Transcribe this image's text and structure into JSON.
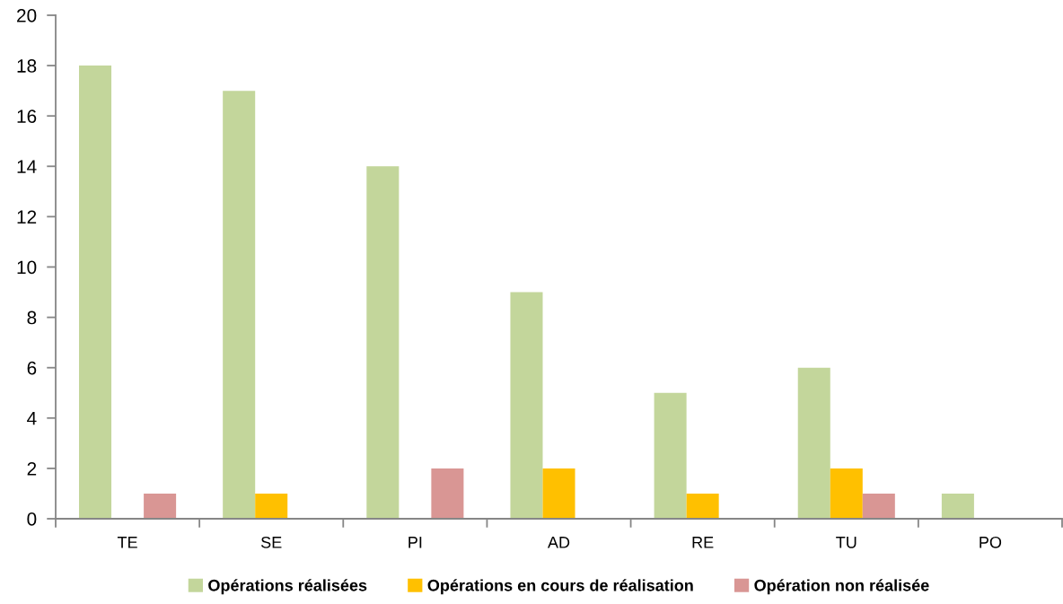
{
  "chart_data": {
    "type": "bar",
    "categories": [
      "TE",
      "SE",
      "PI",
      "AD",
      "RE",
      "TU",
      "PO"
    ],
    "series": [
      {
        "name": "Opérations réalisées",
        "color": "#c3d69b",
        "values": [
          18,
          17,
          14,
          9,
          5,
          6,
          1
        ]
      },
      {
        "name": "Opérations en cours de réalisation",
        "color": "#ffc000",
        "values": [
          0,
          1,
          0,
          2,
          1,
          2,
          0
        ]
      },
      {
        "name": "Opération non réalisée",
        "color": "#d99694",
        "values": [
          1,
          0,
          2,
          0,
          0,
          1,
          0
        ]
      }
    ],
    "ylim": [
      0,
      20
    ],
    "yticks": [
      0,
      2,
      4,
      6,
      8,
      10,
      12,
      14,
      16,
      18,
      20
    ],
    "grid": false,
    "legend": "bottom"
  }
}
